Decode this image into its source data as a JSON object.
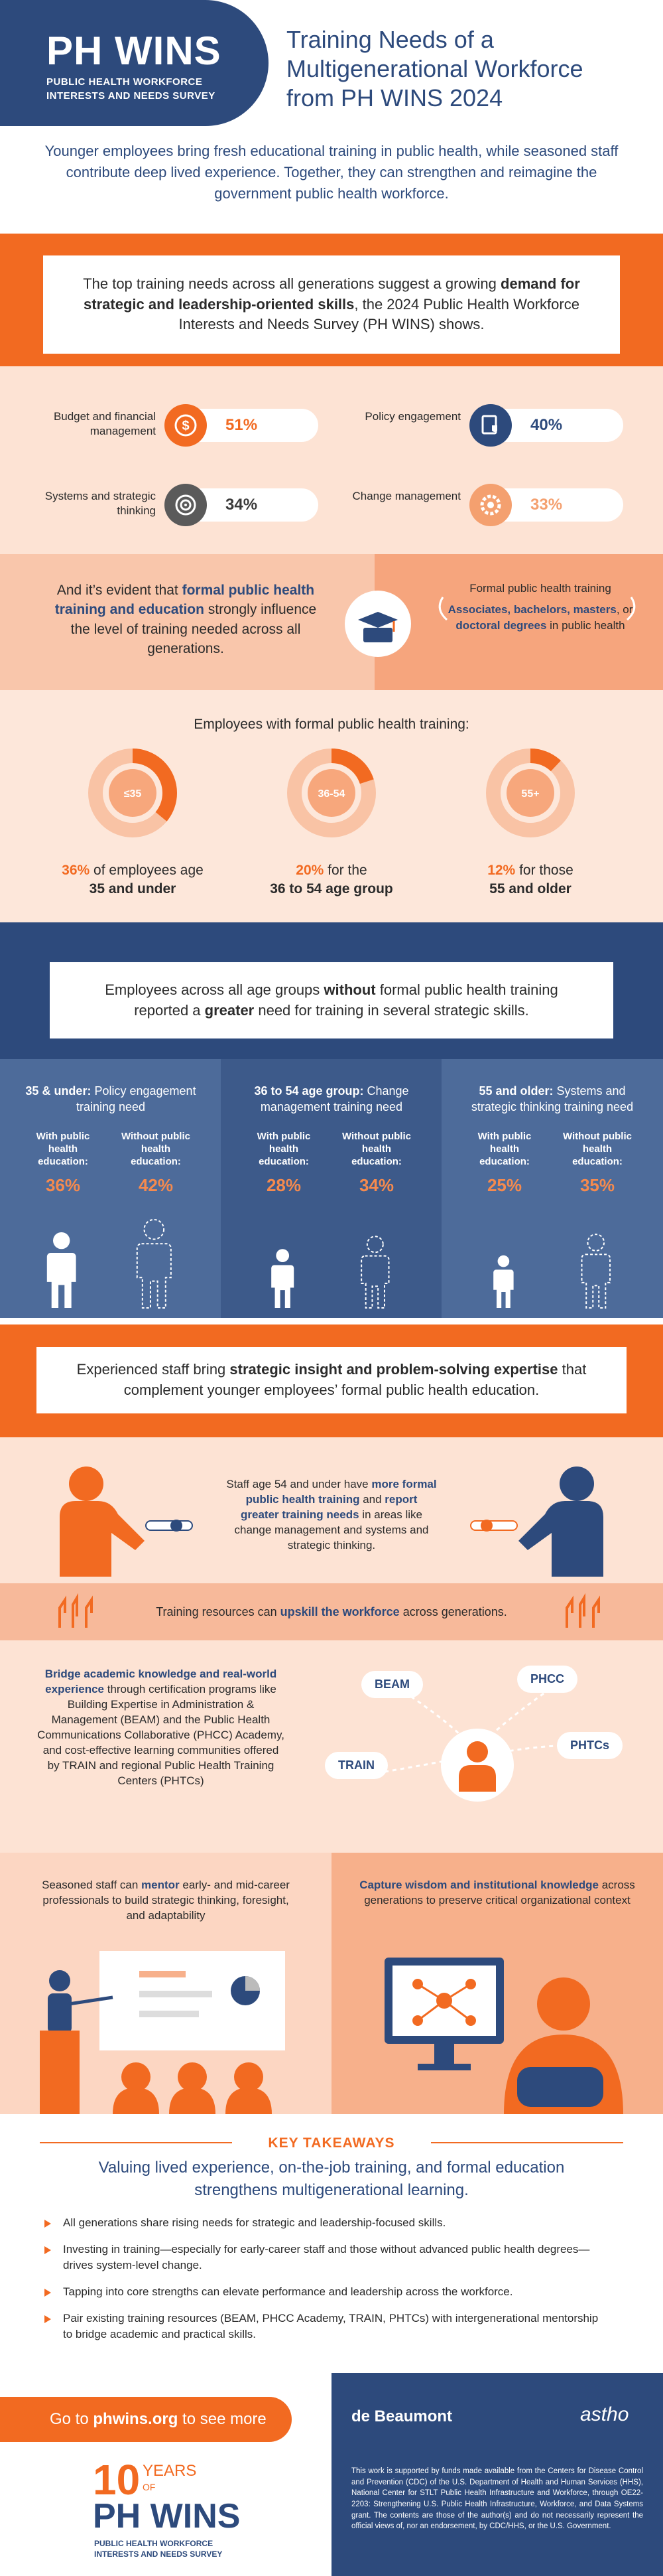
{
  "header": {
    "logo": "PH WINS",
    "logo_sub": [
      "PUBLIC HEALTH WORKFORCE",
      "INTERESTS AND NEEDS SURVEY"
    ],
    "title": "Training Needs of a Multigenerational Workforce from PH WINS 2024"
  },
  "intro": "Younger employees bring fresh educational training in public health, while seasoned staff contribute deep lived experience. Together, they can strengthen and reimagine the government public health workforce.",
  "top_needs": {
    "text": [
      "The top training needs across all generations suggest a growing ",
      "demand for strategic and leadership-oriented skills",
      ", the 2024 Public Health Workforce Interests and Needs Survey (PH WINS) shows."
    ],
    "skills": [
      {
        "label": "Budget and financial management",
        "value": "51%"
      },
      {
        "label": "Policy engagement",
        "value": "40%"
      },
      {
        "label": "Systems and strategic thinking",
        "value": "34%"
      },
      {
        "label": "Change management",
        "value": "33%"
      }
    ]
  },
  "formal": {
    "text": [
      "And it’s evident that ",
      "formal public health training and education",
      " strongly influence the level of training needed across all generations."
    ],
    "box_title": "Formal public health training",
    "box_text": [
      "Associates, bachelors, masters",
      ", or ",
      "doctoral degrees",
      " in public health"
    ]
  },
  "donuts": {
    "title": "Employees with formal public health training:",
    "items": [
      {
        "label": "≤35",
        "value": 36,
        "value_label": "36%",
        "caption": [
          "of employees age",
          "35 and under"
        ]
      },
      {
        "label": "36-54",
        "value": 20,
        "value_label": "20%",
        "caption": [
          "for the",
          "36 to 54 age group"
        ]
      },
      {
        "label": "55+",
        "value": 12,
        "value_label": "12%",
        "caption": [
          "for those",
          "55 and older"
        ]
      }
    ]
  },
  "without": {
    "text": [
      "Employees across all age groups ",
      "without",
      " formal public health training reported a ",
      "greater",
      " need for training in several strategic skills."
    ],
    "groups": [
      {
        "title_bold": "35 & under:",
        "title": "Policy engagement training need",
        "with": {
          "label": "With public health education:",
          "value": 36,
          "value_label": "36%"
        },
        "without": {
          "label": "Without public health education:",
          "value": 42,
          "value_label": "42%"
        }
      },
      {
        "title_bold": "36 to 54 age group:",
        "title": "Change management training need",
        "with": {
          "label": "With public health education:",
          "value": 28,
          "value_label": "28%"
        },
        "without": {
          "label": "Without public health education:",
          "value": 34,
          "value_label": "34%"
        }
      },
      {
        "title_bold": "55 and older:",
        "title": "Systems and strategic thinking training need",
        "with": {
          "label": "With public health education:",
          "value": 25,
          "value_label": "25%"
        },
        "without": {
          "label": "Without public health education:",
          "value": 35,
          "value_label": "35%"
        }
      }
    ]
  },
  "experienced": [
    "Experienced staff bring ",
    "strategic insight and problem-solving expertise",
    " that complement younger employees’ formal public health education."
  ],
  "staff": [
    "Staff age 54 and under have ",
    "more formal public health training",
    " and ",
    "report greater training needs",
    " in areas like change management and systems and strategic thinking."
  ],
  "resources": [
    "Training resources can ",
    "upskill the workforce",
    " across generations."
  ],
  "bridge": {
    "text": [
      "Bridge academic knowledge and real-world experience",
      " through certification programs like Building Expertise in Administration & Management (BEAM) and the Public Health Communications Collaborative (PHCC) Academy, and cost-effective learning communities offered by TRAIN and regional Public Health Training Centers (PHTCs)"
    ],
    "nodes": [
      "BEAM",
      "PHCC",
      "TRAIN",
      "PHTCs"
    ]
  },
  "mentor": [
    "Seasoned staff can ",
    "mentor",
    " early- and mid-career professionals to build strategic thinking, foresight, and adaptability"
  ],
  "capture": [
    "Capture wisdom and institutional knowledge",
    " across generations to preserve critical organizational context"
  ],
  "takeaways": {
    "title": "KEY TAKEAWAYS",
    "subtitle": "Valuing lived experience, on-the-job training, and formal education strengthens multigenerational learning.",
    "items": [
      "All generations share rising needs for strategic and leadership-focused skills.",
      "Investing in training—especially for early-career staff and those without advanced public health degrees—drives system-level change.",
      "Tapping into core strengths can elevate performance and leadership across the workforce.",
      "Pair existing training resources (BEAM, PHCC Academy, TRAIN, PHTCs) with intergenerational mentorship to bridge academic and practical skills."
    ]
  },
  "footer": {
    "cta": [
      "Go to ",
      "phwins.org",
      " to see more"
    ],
    "anniversary": {
      "number": "10",
      "years": "YEARS",
      "of": "OF",
      "logo": "PH WINS",
      "sub": [
        "PUBLIC HEALTH WORKFORCE",
        "INTERESTS AND NEEDS SURVEY"
      ]
    },
    "partners": [
      "de Beaumont",
      "astho"
    ],
    "disclaimer": "This work is supported by funds made available from the Centers for Disease Control and Prevention (CDC) of the U.S. Department of Health and Human Services (HHS), National Center for STLT Public Health Infrastructure and Workforce, through OE22-2203: Strengthening U.S. Public Health Infrastructure, Workforce, and Data Systems grant. The contents are those of the author(s) and do not necessarily represent the official views of, nor an endorsement, by CDC/HHS, or the U.S. Government."
  }
}
